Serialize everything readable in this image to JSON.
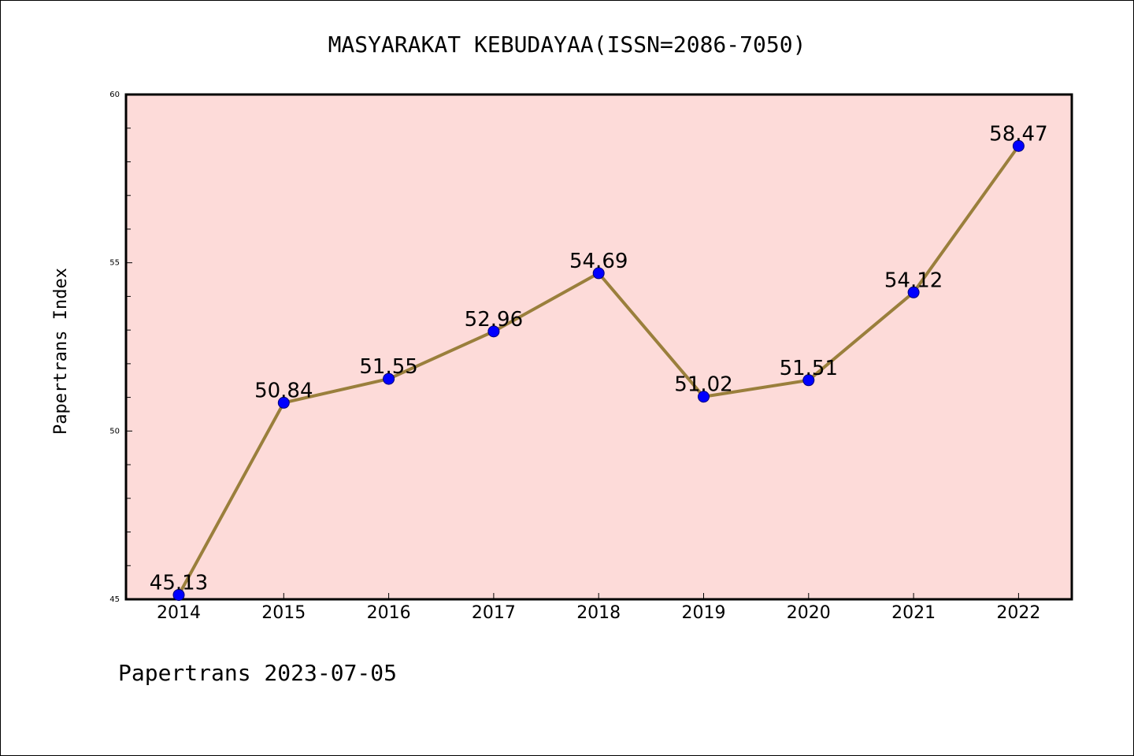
{
  "chart_data": {
    "type": "line",
    "title": "MASYARAKAT KEBUDAYAA(ISSN=2086-7050)",
    "xlabel": "",
    "ylabel": "Papertrans Index",
    "footer": "Papertrans 2023-07-05",
    "categories": [
      "2014",
      "2015",
      "2016",
      "2017",
      "2018",
      "2019",
      "2020",
      "2021",
      "2022"
    ],
    "series": [
      {
        "values": [
          45.13,
          50.84,
          51.55,
          52.96,
          54.69,
          51.02,
          51.51,
          54.12,
          58.47
        ],
        "labels": [
          "45.13",
          "50.84",
          "51.55",
          "52.96",
          "54.69",
          "51.02",
          "51.51",
          "54.12",
          "58.47"
        ],
        "line_color": "#9a7f3c",
        "marker_color": "#0000ff"
      }
    ],
    "ylim": [
      45,
      60
    ],
    "y_major_ticks": [
      45,
      50,
      55,
      60
    ],
    "y_tick_labels": [
      "45",
      "50",
      "55",
      "60"
    ],
    "y_minor_step": 1,
    "grid": false,
    "legend": "none",
    "plot_background": "#fddbd9"
  }
}
